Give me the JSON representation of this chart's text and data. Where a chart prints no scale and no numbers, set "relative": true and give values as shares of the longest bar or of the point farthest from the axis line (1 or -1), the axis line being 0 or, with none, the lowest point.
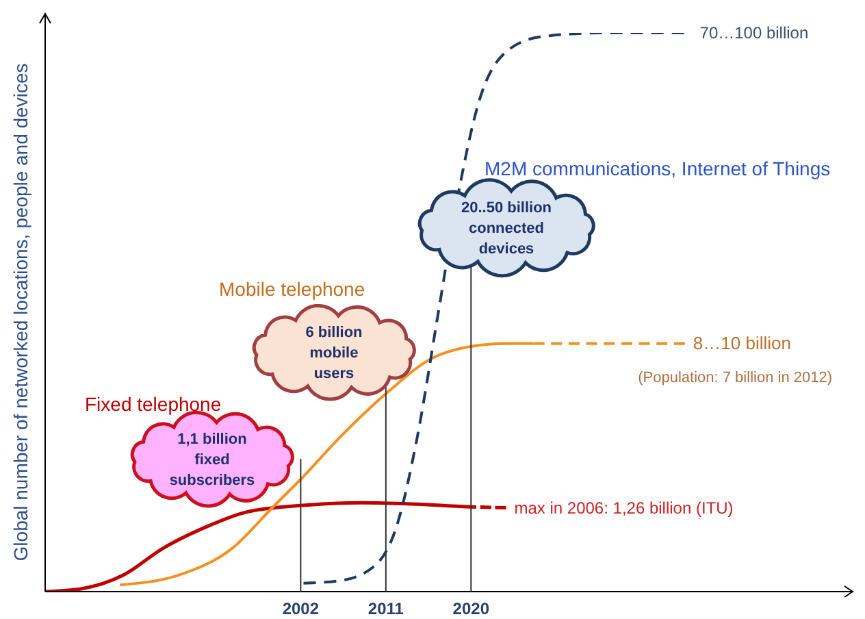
{
  "chart_data": {
    "type": "line",
    "relative": true,
    "ylabel": "Global number of networked locations, people and devices",
    "xlim": [
      1975,
      2057
    ],
    "xticks": [
      2002,
      2011,
      2020
    ],
    "series": [
      {
        "color": "#c00000",
        "line_style": "solid",
        "x": [
          1975,
          1978.8,
          1983.2,
          1987.5,
          1991.9,
          1996.2,
          2002,
          2008.5,
          2013.6,
          2019.4
        ],
        "values": [
          0,
          0.005,
          0.029,
          0.078,
          0.115,
          0.142,
          0.154,
          0.159,
          0.157,
          0.152
        ]
      },
      {
        "color": "#c00000",
        "line_style": "dashed",
        "x": [
          2019.4,
          2023.7
        ],
        "values": [
          0.152,
          0.15
        ]
      },
      {
        "color": "#f39020",
        "line_style": "solid",
        "x": [
          1982.9,
          1989,
          1994.8,
          1999.1,
          2002,
          2006.3,
          2011.4,
          2015.8,
          2020.1,
          2023.7,
          2026.6
        ],
        "values": [
          0.012,
          0.029,
          0.078,
          0.152,
          0.201,
          0.279,
          0.36,
          0.417,
          0.439,
          0.444,
          0.444
        ]
      },
      {
        "color": "#f39020",
        "line_style": "dashed",
        "x": [
          2026.6,
          2042.6
        ],
        "values": [
          0.444,
          0.444
        ]
      },
      {
        "color": "#1f3a60",
        "line_style": "dashed",
        "x": [
          2002.3,
          2006.3,
          2010,
          2012.1,
          2014.3,
          2016.5,
          2018.7,
          2020.8,
          2023.7,
          2027.4,
          2033.9,
          2043.3
        ],
        "values": [
          0.015,
          0.02,
          0.049,
          0.115,
          0.275,
          0.495,
          0.716,
          0.875,
          0.966,
          0.993,
          1,
          1
        ]
      }
    ],
    "annotations": [
      "1,1 billion\nfixed\nsubscribers",
      "6 billion\nmobile\nusers",
      "20..50 billion\nconnected\ndevices",
      {
        "text": "70…100 billion",
        "x": 2043.3,
        "y": 1
      },
      {
        "text": "8…10 billion",
        "x": 2042.6,
        "y": 0.444
      },
      {
        "text": "max in 2006: 1,26 billion (ITU)",
        "x": 2023.7,
        "y": 0.15
      },
      "Fixed telephone",
      "Mobile telephone",
      "M2M communications,  Internet of Things",
      "(Population: 7 billion in 2012)"
    ],
    "ref_lines": [
      {
        "axis": "x",
        "value": 2002,
        "color": "#333333"
      },
      {
        "axis": "x",
        "value": 2011,
        "color": "#333333"
      },
      {
        "axis": "x",
        "value": 2020,
        "color": "#333333"
      }
    ]
  }
}
